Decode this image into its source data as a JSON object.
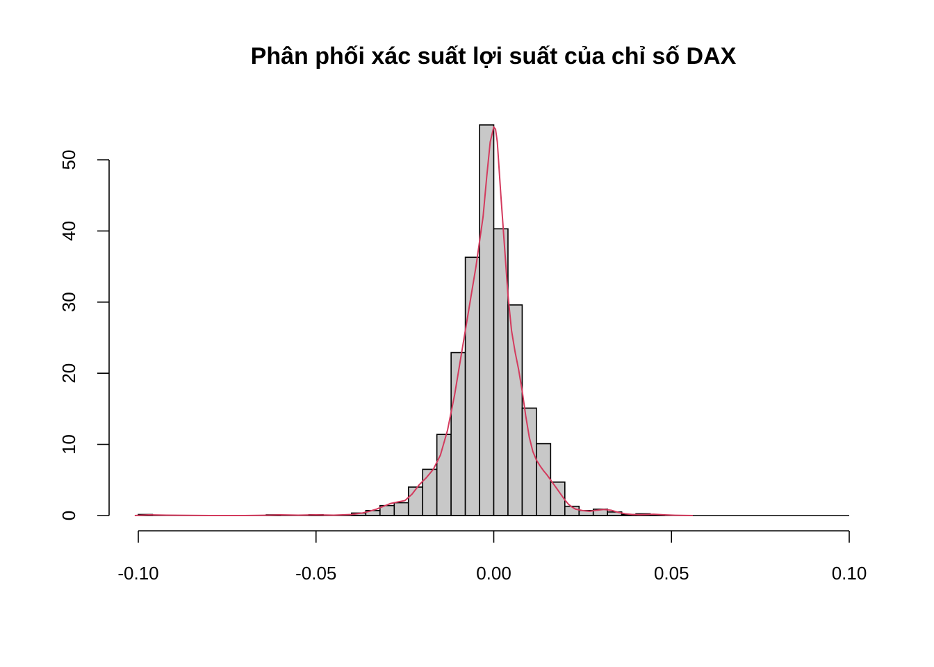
{
  "chart_data": {
    "type": "bar",
    "title": "Phân phối xác suất lợi suất của chỉ số DAX",
    "xlabel": "",
    "ylabel": "",
    "xlim": [
      -0.1,
      0.1
    ],
    "ylim": [
      0,
      55
    ],
    "x_ticks": [
      -0.1,
      -0.05,
      0.0,
      0.05,
      0.1
    ],
    "x_tick_labels": [
      "-0.10",
      "-0.05",
      "0.00",
      "0.05",
      "0.10"
    ],
    "y_ticks": [
      0,
      10,
      20,
      30,
      40,
      50
    ],
    "y_tick_labels": [
      "0",
      "10",
      "20",
      "30",
      "40",
      "50"
    ],
    "grid": false,
    "legend": "none",
    "bin_width": 0.004,
    "bins": [
      {
        "x0": -0.1,
        "x1": -0.096,
        "value": 0.15
      },
      {
        "x0": -0.064,
        "x1": -0.06,
        "value": 0.1
      },
      {
        "x0": -0.052,
        "x1": -0.048,
        "value": 0.12
      },
      {
        "x0": -0.04,
        "x1": -0.036,
        "value": 0.35
      },
      {
        "x0": -0.036,
        "x1": -0.032,
        "value": 0.7
      },
      {
        "x0": -0.032,
        "x1": -0.028,
        "value": 1.4
      },
      {
        "x0": -0.028,
        "x1": -0.024,
        "value": 1.8
      },
      {
        "x0": -0.024,
        "x1": -0.02,
        "value": 4.0
      },
      {
        "x0": -0.02,
        "x1": -0.016,
        "value": 6.5
      },
      {
        "x0": -0.016,
        "x1": -0.012,
        "value": 11.4
      },
      {
        "x0": -0.012,
        "x1": -0.008,
        "value": 22.9
      },
      {
        "x0": -0.008,
        "x1": -0.004,
        "value": 36.3
      },
      {
        "x0": -0.004,
        "x1": 0.0,
        "value": 54.9
      },
      {
        "x0": 0.0,
        "x1": 0.004,
        "value": 40.3
      },
      {
        "x0": 0.004,
        "x1": 0.008,
        "value": 29.6
      },
      {
        "x0": 0.008,
        "x1": 0.012,
        "value": 15.1
      },
      {
        "x0": 0.012,
        "x1": 0.016,
        "value": 10.1
      },
      {
        "x0": 0.016,
        "x1": 0.02,
        "value": 4.7
      },
      {
        "x0": 0.02,
        "x1": 0.024,
        "value": 1.3
      },
      {
        "x0": 0.024,
        "x1": 0.028,
        "value": 0.7
      },
      {
        "x0": 0.028,
        "x1": 0.032,
        "value": 0.9
      },
      {
        "x0": 0.032,
        "x1": 0.036,
        "value": 0.5
      },
      {
        "x0": 0.036,
        "x1": 0.04,
        "value": 0.15
      },
      {
        "x0": 0.04,
        "x1": 0.044,
        "value": 0.25
      },
      {
        "x0": 0.044,
        "x1": 0.048,
        "value": 0.1
      }
    ],
    "density_series": {
      "color": "#d33a5d",
      "x": [
        -0.101,
        -0.097,
        -0.092,
        -0.08,
        -0.07,
        -0.063,
        -0.06,
        -0.055,
        -0.05,
        -0.045,
        -0.04,
        -0.037,
        -0.035,
        -0.033,
        -0.031,
        -0.029,
        -0.027,
        -0.025,
        -0.023,
        -0.021,
        -0.019,
        -0.017,
        -0.015,
        -0.013,
        -0.011,
        -0.009,
        -0.007,
        -0.005,
        -0.003,
        -0.002,
        -0.001,
        0.0,
        0.0005,
        0.001,
        0.002,
        0.003,
        0.004,
        0.005,
        0.006,
        0.007,
        0.008,
        0.009,
        0.01,
        0.011,
        0.012,
        0.013,
        0.014,
        0.015,
        0.016,
        0.017,
        0.018,
        0.019,
        0.02,
        0.021,
        0.022,
        0.023,
        0.025,
        0.027,
        0.029,
        0.031,
        0.033,
        0.035,
        0.037,
        0.039,
        0.041,
        0.043,
        0.045,
        0.048,
        0.051,
        0.054,
        0.056
      ],
      "y": [
        0.0,
        0.1,
        0.05,
        0.0,
        0.0,
        0.05,
        0.1,
        0.05,
        0.1,
        0.05,
        0.15,
        0.35,
        0.6,
        0.9,
        1.3,
        1.7,
        1.9,
        2.1,
        3.0,
        4.3,
        5.3,
        6.5,
        8.5,
        12.0,
        17.0,
        23.0,
        29.0,
        35.0,
        42.0,
        47.5,
        52.5,
        54.6,
        54.3,
        52.5,
        45.0,
        38.0,
        31.0,
        26.0,
        23.0,
        20.5,
        17.5,
        14.0,
        11.0,
        9.0,
        7.8,
        7.0,
        6.3,
        5.7,
        5.0,
        4.3,
        3.6,
        2.9,
        2.2,
        1.6,
        1.2,
        0.9,
        0.7,
        0.6,
        0.75,
        0.85,
        0.75,
        0.45,
        0.25,
        0.15,
        0.12,
        0.15,
        0.18,
        0.1,
        0.04,
        0.01,
        0.0
      ]
    }
  }
}
